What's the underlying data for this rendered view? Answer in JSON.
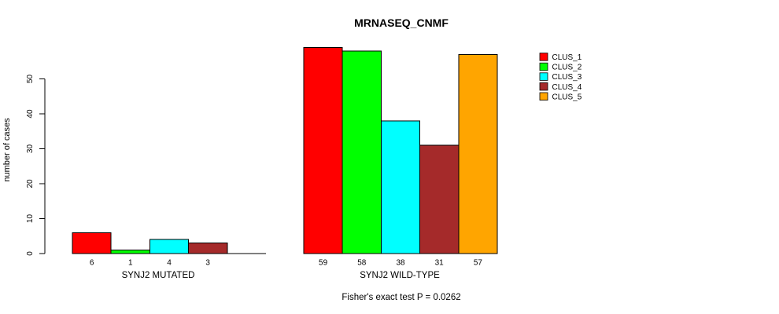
{
  "chart_data": {
    "type": "bar",
    "title": "MRNASEQ_CNMF",
    "ylabel": "number of cases",
    "xlabel": "",
    "ylim": [
      0,
      50
    ],
    "yticks": [
      0,
      10,
      20,
      30,
      40,
      50
    ],
    "grid": false,
    "legend_position": "right",
    "annotation": "Fisher's exact test P = 0.0262",
    "series": [
      {
        "name": "CLUS_1",
        "color": "#ff0000"
      },
      {
        "name": "CLUS_2",
        "color": "#00ff00"
      },
      {
        "name": "CLUS_3",
        "color": "#00ffff"
      },
      {
        "name": "CLUS_4",
        "color": "#a52a2a"
      },
      {
        "name": "CLUS_5",
        "color": "#ffa500"
      }
    ],
    "groups": [
      {
        "label": "SYNJ2 MUTATED",
        "values": [
          6,
          1,
          4,
          3,
          0
        ],
        "bar_labels": [
          "6",
          "1",
          "4",
          "3"
        ]
      },
      {
        "label": "SYNJ2 WILD-TYPE",
        "values": [
          59,
          58,
          38,
          31,
          57
        ],
        "bar_labels": [
          "59",
          "58",
          "38",
          "31",
          "57"
        ]
      }
    ]
  }
}
